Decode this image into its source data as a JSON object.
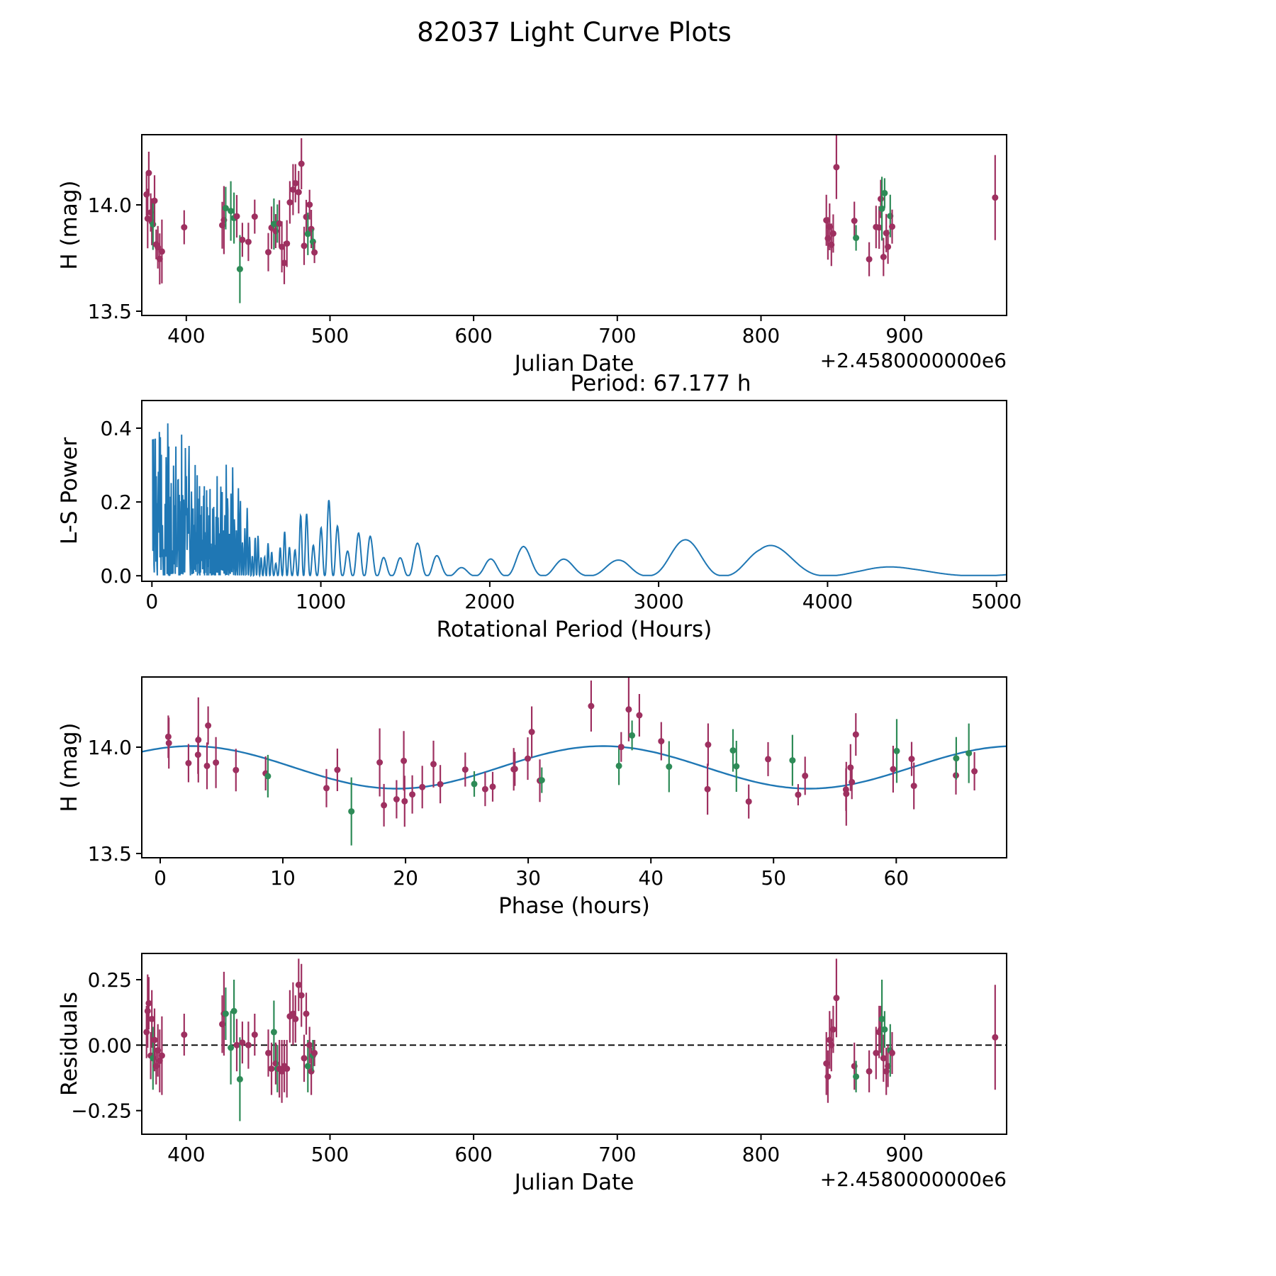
{
  "title": "82037 Light Curve Plots",
  "colors": {
    "series_purple": "#9e3060",
    "series_green": "#2e8b57",
    "line": "#1f77b4",
    "axes": "#000000",
    "background": "#ffffff"
  },
  "fit": {
    "mean": 13.905,
    "amplitude": 0.1,
    "rotation_period_h": 67.177,
    "phase_zero": 2.5
  },
  "observations": [
    [
      372.3,
      0.05,
      0.1,
      "p"
    ],
    [
      373.1,
      0.13,
      0.14,
      "p"
    ],
    [
      373.9,
      0.16,
      0.1,
      "p"
    ],
    [
      375.2,
      -0.04,
      0.09,
      "p"
    ],
    [
      376.0,
      0.1,
      0.11,
      "p"
    ],
    [
      376.8,
      -0.05,
      0.12,
      "g"
    ],
    [
      377.9,
      0.02,
      0.12,
      "p"
    ],
    [
      379.0,
      -0.08,
      0.07,
      "p"
    ],
    [
      380.2,
      -0.02,
      0.1,
      "p"
    ],
    [
      381.5,
      -0.06,
      0.12,
      "p"
    ],
    [
      383.0,
      -0.04,
      0.15,
      "p"
    ],
    [
      398.5,
      0.04,
      0.08,
      "p"
    ],
    [
      425.0,
      0.08,
      0.11,
      "p"
    ],
    [
      426.2,
      0.12,
      0.16,
      "p"
    ],
    [
      427.4,
      0.12,
      0.1,
      "g"
    ],
    [
      431.0,
      -0.01,
      0.14,
      "g"
    ],
    [
      433.2,
      0.13,
      0.12,
      "g"
    ],
    [
      435.1,
      0.0,
      0.1,
      "p"
    ],
    [
      437.3,
      -0.13,
      0.16,
      "g"
    ],
    [
      439.0,
      0.01,
      0.08,
      "p"
    ],
    [
      443.2,
      0.0,
      0.09,
      "p"
    ],
    [
      447.6,
      0.04,
      0.08,
      "p"
    ],
    [
      457.1,
      -0.03,
      0.09,
      "p"
    ],
    [
      459.3,
      -0.09,
      0.1,
      "p"
    ],
    [
      461.0,
      0.05,
      0.12,
      "g"
    ],
    [
      462.2,
      -0.07,
      0.08,
      "p"
    ],
    [
      463.4,
      -0.09,
      0.09,
      "g"
    ],
    [
      464.8,
      -0.09,
      0.11,
      "p"
    ],
    [
      466.5,
      -0.1,
      0.12,
      "p"
    ],
    [
      468.2,
      -0.08,
      0.1,
      "p"
    ],
    [
      470.0,
      -0.09,
      0.11,
      "p"
    ],
    [
      472.1,
      0.11,
      0.1,
      "p"
    ],
    [
      474.3,
      0.12,
      0.12,
      "p"
    ],
    [
      476.0,
      0.1,
      0.09,
      "p"
    ],
    [
      478.2,
      0.23,
      0.1,
      "p"
    ],
    [
      480.1,
      0.19,
      0.12,
      "p"
    ],
    [
      482.0,
      -0.05,
      0.09,
      "p"
    ],
    [
      483.5,
      0.12,
      0.08,
      "p"
    ],
    [
      484.6,
      -0.08,
      0.1,
      "g"
    ],
    [
      485.8,
      0.0,
      0.07,
      "p"
    ],
    [
      487.0,
      -0.1,
      0.09,
      "p"
    ],
    [
      488.1,
      -0.04,
      0.06,
      "g"
    ],
    [
      489.2,
      -0.03,
      0.05,
      "p"
    ],
    [
      845.5,
      -0.07,
      0.12,
      "p"
    ],
    [
      846.6,
      -0.12,
      0.1,
      "p"
    ],
    [
      847.8,
      0.02,
      0.11,
      "p"
    ],
    [
      849.0,
      0.0,
      0.1,
      "p"
    ],
    [
      850.3,
      0.06,
      0.09,
      "p"
    ],
    [
      852.5,
      0.18,
      0.15,
      "p"
    ],
    [
      865.0,
      -0.08,
      0.09,
      "p"
    ],
    [
      866.2,
      -0.12,
      0.06,
      "g"
    ],
    [
      875.3,
      -0.1,
      0.08,
      "p"
    ],
    [
      880.1,
      -0.03,
      0.1,
      "p"
    ],
    [
      882.3,
      0.05,
      0.1,
      "p"
    ],
    [
      883.4,
      0.06,
      0.09,
      "p"
    ],
    [
      884.2,
      0.1,
      0.15,
      "g"
    ],
    [
      885.3,
      -0.05,
      0.09,
      "p"
    ],
    [
      886.1,
      0.06,
      0.07,
      "g"
    ],
    [
      887.2,
      -0.1,
      0.09,
      "p"
    ],
    [
      888.4,
      -0.08,
      0.08,
      "p"
    ],
    [
      890.0,
      -0.02,
      0.1,
      "g"
    ],
    [
      891.3,
      -0.03,
      0.08,
      "p"
    ],
    [
      963.0,
      0.03,
      0.2,
      "p"
    ]
  ],
  "chart_data": [
    {
      "id": "light-curve",
      "type": "scatter",
      "points_mode": "jd_mag",
      "xlabel": "Julian Date",
      "ylabel": "H (mag)",
      "x_offset_text": "+2.4580000000e6",
      "xlim": [
        369,
        971
      ],
      "ylim": [
        13.48,
        14.33
      ],
      "xticks": [
        {
          "v": 400,
          "l": "400"
        },
        {
          "v": 500,
          "l": "500"
        },
        {
          "v": 600,
          "l": "600"
        },
        {
          "v": 700,
          "l": "700"
        },
        {
          "v": 800,
          "l": "800"
        },
        {
          "v": 900,
          "l": "900"
        }
      ],
      "yticks": [
        {
          "v": 13.5,
          "l": "13.5"
        },
        {
          "v": 14.0,
          "l": "14.0"
        }
      ]
    },
    {
      "id": "periodogram",
      "type": "line",
      "annotation": "Period: 67.177 h",
      "xlabel": "Rotational Period (Hours)",
      "ylabel": "L-S Power",
      "xlim": [
        -60,
        5060
      ],
      "ylim": [
        -0.015,
        0.475
      ],
      "xticks": [
        {
          "v": 0,
          "l": "0"
        },
        {
          "v": 1000,
          "l": "1000"
        },
        {
          "v": 2000,
          "l": "2000"
        },
        {
          "v": 3000,
          "l": "3000"
        },
        {
          "v": 4000,
          "l": "4000"
        },
        {
          "v": 5000,
          "l": "5000"
        }
      ],
      "yticks": [
        {
          "v": 0.0,
          "l": "0.0"
        },
        {
          "v": 0.2,
          "l": "0.2"
        },
        {
          "v": 0.4,
          "l": "0.4"
        }
      ],
      "synth": {
        "t1": 22000,
        "t2": 6100,
        "t2_phase": 1.2,
        "power_exp": 1.3,
        "pmin": 4,
        "pmax": 5058,
        "step": 2,
        "envelope": [
          [
            0,
            0.46
          ],
          [
            60,
            0.47
          ],
          [
            120,
            0.42
          ],
          [
            180,
            0.44
          ],
          [
            240,
            0.33
          ],
          [
            300,
            0.28
          ],
          [
            360,
            0.24
          ],
          [
            420,
            0.31
          ],
          [
            480,
            0.3
          ],
          [
            540,
            0.22
          ],
          [
            600,
            0.13
          ],
          [
            660,
            0.1
          ],
          [
            720,
            0.08
          ],
          [
            800,
            0.13
          ],
          [
            900,
            0.19
          ],
          [
            1000,
            0.21
          ],
          [
            1100,
            0.2
          ],
          [
            1200,
            0.15
          ],
          [
            1300,
            0.11
          ],
          [
            1450,
            0.095
          ],
          [
            1600,
            0.09
          ],
          [
            1750,
            0.055
          ],
          [
            1900,
            0.06
          ],
          [
            2050,
            0.065
          ],
          [
            2200,
            0.08
          ],
          [
            2400,
            0.075
          ],
          [
            2600,
            0.09
          ],
          [
            2800,
            0.1
          ],
          [
            3000,
            0.09
          ],
          [
            3300,
            0.125
          ],
          [
            3600,
            0.09
          ],
          [
            3900,
            0.105
          ],
          [
            4200,
            0.06
          ],
          [
            4500,
            0.055
          ],
          [
            4800,
            0.065
          ],
          [
            5000,
            0.05
          ]
        ]
      }
    },
    {
      "id": "phased",
      "type": "scatter+line",
      "points_mode": "phase_mag",
      "xlabel": "Phase (hours)",
      "ylabel": "H (mag)",
      "xlim": [
        -1.5,
        69
      ],
      "ylim": [
        13.48,
        14.33
      ],
      "xticks": [
        {
          "v": 0,
          "l": "0"
        },
        {
          "v": 10,
          "l": "10"
        },
        {
          "v": 20,
          "l": "20"
        },
        {
          "v": 30,
          "l": "30"
        },
        {
          "v": 40,
          "l": "40"
        },
        {
          "v": 50,
          "l": "50"
        },
        {
          "v": 60,
          "l": "60"
        }
      ],
      "yticks": [
        {
          "v": 13.5,
          "l": "13.5"
        },
        {
          "v": 14.0,
          "l": "14.0"
        }
      ]
    },
    {
      "id": "residuals",
      "type": "scatter",
      "points_mode": "jd_res",
      "zero_line": true,
      "xlabel": "Julian Date",
      "ylabel": "Residuals",
      "x_offset_text": "+2.4580000000e6",
      "xlim": [
        369,
        971
      ],
      "ylim": [
        -0.34,
        0.35
      ],
      "xticks": [
        {
          "v": 400,
          "l": "400"
        },
        {
          "v": 500,
          "l": "500"
        },
        {
          "v": 600,
          "l": "600"
        },
        {
          "v": 700,
          "l": "700"
        },
        {
          "v": 800,
          "l": "800"
        },
        {
          "v": 900,
          "l": "900"
        }
      ],
      "yticks": [
        {
          "v": -0.25,
          "l": "−0.25"
        },
        {
          "v": 0,
          "l": "0.00"
        },
        {
          "v": 0.25,
          "l": "0.25"
        }
      ]
    }
  ]
}
